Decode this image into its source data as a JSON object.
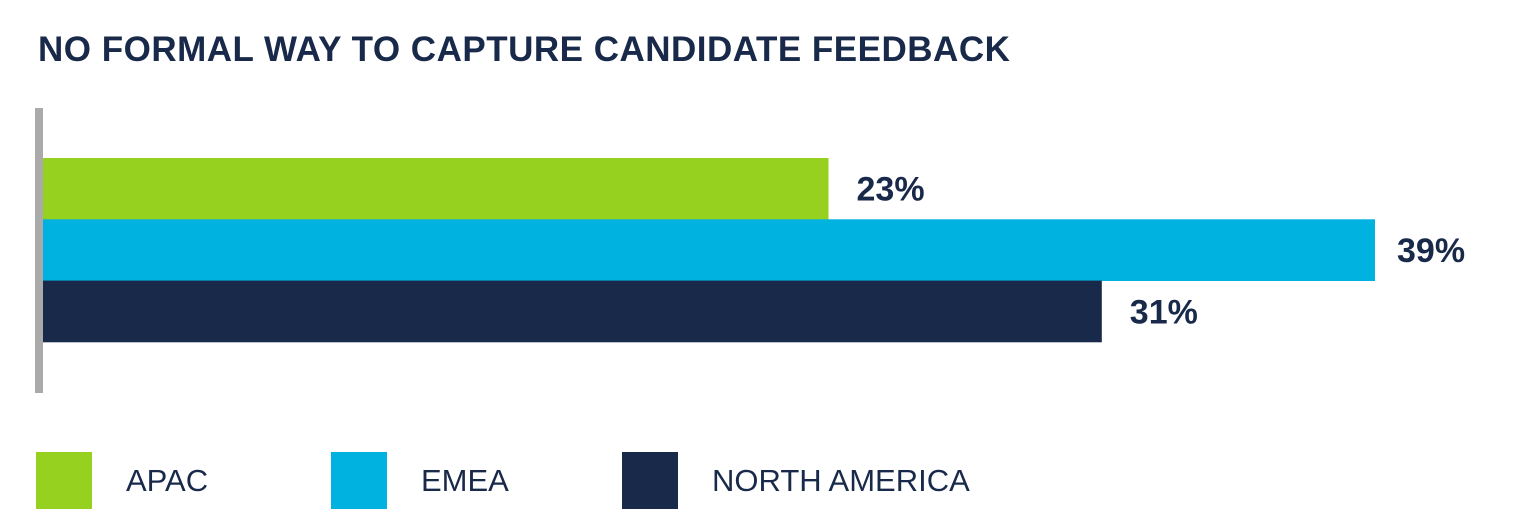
{
  "chart_data": {
    "type": "bar",
    "orientation": "horizontal",
    "title": "NO FORMAL WAY TO CAPTURE CANDIDATE FEEDBACK",
    "categories": [
      "APAC",
      "EMEA",
      "NORTH AMERICA"
    ],
    "values": [
      23,
      39,
      31
    ],
    "value_labels": [
      "23%",
      "39%",
      "31%"
    ],
    "unit": "%",
    "xlim": [
      0,
      45
    ],
    "grid": false,
    "legend_position": "bottom",
    "colors": [
      "#97d11f",
      "#00b2e0",
      "#18294a"
    ]
  },
  "legend": {
    "items": [
      {
        "label": "APAC",
        "color": "#97d11f"
      },
      {
        "label": "EMEA",
        "color": "#00b2e0"
      },
      {
        "label": "NORTH AMERICA",
        "color": "#18294a"
      }
    ]
  },
  "colors": {
    "axis": "#aaaaaa",
    "text": "#18294a",
    "background": "#ffffff"
  }
}
